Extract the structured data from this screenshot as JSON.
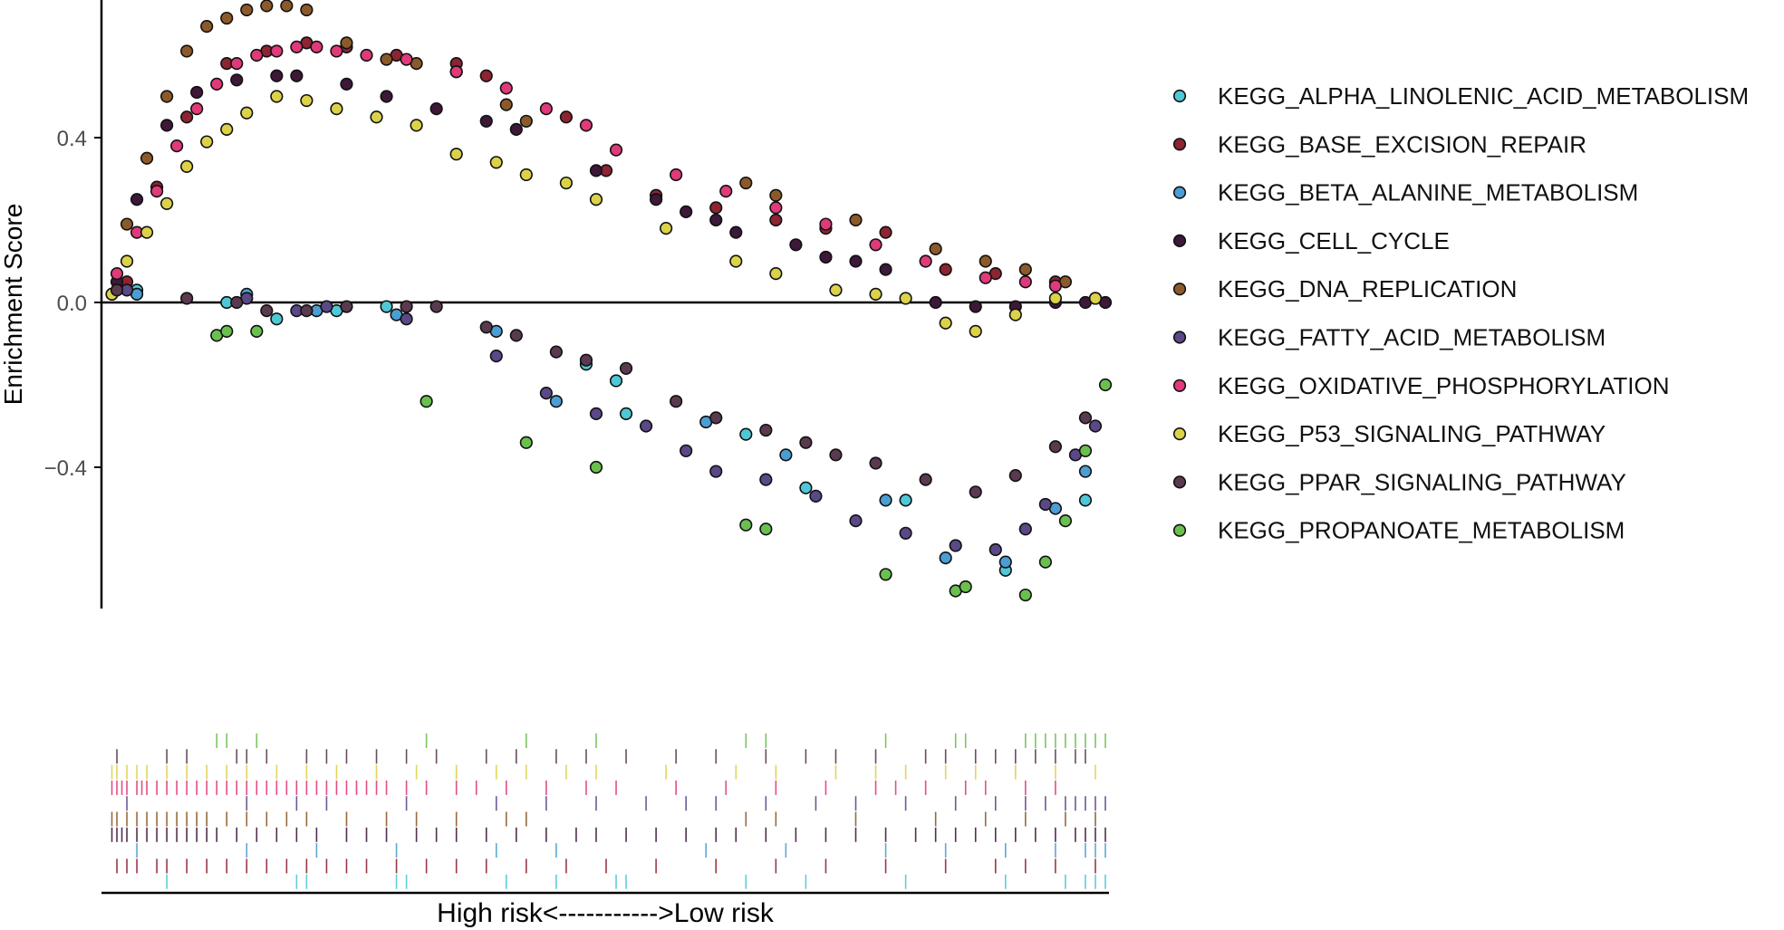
{
  "chart_data": {
    "type": "scatter",
    "ylabel": "Enrichment Score",
    "xlabel": "High risk<----------->Low risk",
    "x_range": [
      0,
      100
    ],
    "ylim": [
      -0.74,
      0.73
    ],
    "yticks": [
      0.4,
      0.0,
      -0.4
    ],
    "ytick_labels": [
      "0.4",
      "0.0",
      "−0.4"
    ],
    "grid": false,
    "legend_position": "right",
    "series": [
      {
        "name": "KEGG_ALPHA_LINOLENIC_ACID_METABOLISM",
        "color": "#4ec8d6",
        "x": [
          3,
          12,
          17,
          23,
          28,
          48,
          51,
          52,
          64,
          70,
          80,
          90,
          98
        ],
        "y": [
          0.03,
          0.0,
          -0.04,
          -0.02,
          -0.01,
          -0.15,
          -0.19,
          -0.27,
          -0.32,
          -0.45,
          -0.48,
          -0.65,
          -0.48
        ]
      },
      {
        "name": "KEGG_BASE_EXCISION_REPAIR",
        "color": "#8c2432",
        "x": [
          2,
          5,
          8,
          12,
          16,
          20,
          24,
          29,
          35,
          38,
          46,
          50,
          55,
          61,
          67,
          72,
          78,
          84,
          89,
          95,
          99
        ],
        "y": [
          0.05,
          0.28,
          0.45,
          0.58,
          0.61,
          0.63,
          0.62,
          0.6,
          0.58,
          0.55,
          0.45,
          0.32,
          0.26,
          0.23,
          0.2,
          0.18,
          0.17,
          0.08,
          0.07,
          0.05,
          0.01
        ]
      },
      {
        "name": "KEGG_BETA_ALANINE_METABOLISM",
        "color": "#4a9ed4",
        "x": [
          3,
          14,
          21,
          29,
          39,
          45,
          60,
          68,
          78,
          84,
          90,
          95,
          98
        ],
        "y": [
          0.02,
          0.02,
          -0.02,
          -0.03,
          -0.07,
          -0.24,
          -0.29,
          -0.37,
          -0.48,
          -0.62,
          -0.63,
          -0.5,
          -0.41
        ]
      },
      {
        "name": "KEGG_CELL_CYCLE",
        "color": "#3d1838",
        "x": [
          1,
          3,
          6,
          9,
          13,
          17,
          19,
          24,
          28,
          33,
          38,
          41,
          49,
          55,
          58,
          61,
          63,
          69,
          72,
          75,
          78,
          83,
          87,
          91,
          95,
          98,
          100
        ],
        "y": [
          0.05,
          0.25,
          0.43,
          0.51,
          0.54,
          0.55,
          0.55,
          0.53,
          0.5,
          0.47,
          0.44,
          0.42,
          0.32,
          0.25,
          0.22,
          0.2,
          0.17,
          0.14,
          0.11,
          0.1,
          0.08,
          0.0,
          -0.01,
          -0.01,
          0.0,
          0.0,
          0.0
        ]
      },
      {
        "name": "KEGG_DNA_REPLICATION",
        "color": "#8c5a2a",
        "x": [
          0.5,
          2,
          4,
          6,
          8,
          10,
          12,
          14,
          16,
          18,
          20,
          24,
          28,
          31,
          35,
          40,
          42,
          64,
          67,
          75,
          83,
          88,
          92,
          96,
          99
        ],
        "y": [
          0.02,
          0.19,
          0.35,
          0.5,
          0.61,
          0.67,
          0.69,
          0.71,
          0.72,
          0.72,
          0.71,
          0.63,
          0.59,
          0.58,
          0.56,
          0.48,
          0.44,
          0.29,
          0.26,
          0.2,
          0.13,
          0.1,
          0.08,
          0.05,
          0.01
        ]
      },
      {
        "name": "KEGG_FATTY_ACID_METABOLISM",
        "color": "#5a4888",
        "x": [
          2,
          14,
          19,
          22,
          30,
          39,
          44,
          49,
          54,
          58,
          61,
          66,
          71,
          75,
          80,
          85,
          89,
          92,
          94,
          97,
          99
        ],
        "y": [
          0.03,
          0.01,
          -0.02,
          -0.01,
          -0.04,
          -0.13,
          -0.22,
          -0.27,
          -0.3,
          -0.36,
          -0.41,
          -0.43,
          -0.47,
          -0.53,
          -0.56,
          -0.59,
          -0.6,
          -0.55,
          -0.49,
          -0.37,
          -0.3
        ]
      },
      {
        "name": "KEGG_OXIDATIVE_PHOSPHORYLATION",
        "color": "#e03a7a",
        "x": [
          1,
          3,
          5,
          7,
          9,
          11,
          13,
          15,
          17,
          19,
          21,
          23,
          26,
          30,
          35,
          40,
          44,
          48,
          51,
          57,
          62,
          67,
          72,
          77,
          82,
          88,
          92,
          95
        ],
        "y": [
          0.07,
          0.17,
          0.27,
          0.38,
          0.47,
          0.53,
          0.58,
          0.6,
          0.61,
          0.62,
          0.62,
          0.61,
          0.6,
          0.59,
          0.56,
          0.52,
          0.47,
          0.43,
          0.37,
          0.31,
          0.27,
          0.23,
          0.19,
          0.14,
          0.1,
          0.06,
          0.05,
          0.04
        ]
      },
      {
        "name": "KEGG_P53_SIGNALING_PATHWAY",
        "color": "#dcd24a",
        "x": [
          0.5,
          2,
          4,
          6,
          8,
          10,
          12,
          14,
          17,
          20,
          23,
          27,
          31,
          35,
          39,
          42,
          46,
          49,
          56,
          63,
          67,
          73,
          77,
          80,
          84,
          87,
          91,
          95,
          99
        ],
        "y": [
          0.02,
          0.1,
          0.17,
          0.24,
          0.33,
          0.39,
          0.42,
          0.46,
          0.5,
          0.49,
          0.47,
          0.45,
          0.43,
          0.36,
          0.34,
          0.31,
          0.29,
          0.25,
          0.18,
          0.1,
          0.07,
          0.03,
          0.02,
          0.01,
          -0.05,
          -0.07,
          -0.03,
          0.01,
          0.01
        ]
      },
      {
        "name": "KEGG_PPAR_SIGNALING_PATHWAY",
        "color": "#5a3a4e",
        "x": [
          1,
          8,
          13,
          16,
          20,
          24,
          30,
          33,
          38,
          41,
          45,
          48,
          52,
          57,
          61,
          66,
          70,
          73,
          77,
          82,
          87,
          91,
          95,
          98
        ],
        "y": [
          0.03,
          0.01,
          0.0,
          -0.02,
          -0.02,
          -0.01,
          -0.01,
          -0.01,
          -0.06,
          -0.08,
          -0.12,
          -0.14,
          -0.16,
          -0.24,
          -0.28,
          -0.31,
          -0.34,
          -0.37,
          -0.39,
          -0.43,
          -0.46,
          -0.42,
          -0.35,
          -0.28
        ]
      },
      {
        "name": "KEGG_PROPANOATE_METABOLISM",
        "color": "#6ac04e",
        "x": [
          11,
          12,
          15,
          32,
          42,
          49,
          64,
          66,
          78,
          85,
          86,
          92,
          94,
          96,
          98,
          100
        ],
        "y": [
          -0.08,
          -0.07,
          -0.07,
          -0.24,
          -0.34,
          -0.4,
          -0.54,
          -0.55,
          -0.66,
          -0.7,
          -0.69,
          -0.71,
          -0.63,
          -0.53,
          -0.36,
          -0.2
        ]
      }
    ],
    "rug_tracks": [
      {
        "series": "KEGG_PROPANOATE_METABOLISM",
        "x": [
          11,
          12,
          15,
          32,
          42,
          49,
          64,
          66,
          78,
          85,
          86,
          92,
          93,
          94,
          95,
          96,
          97,
          98,
          99,
          100
        ]
      },
      {
        "series": "KEGG_PPAR_SIGNALING_PATHWAY",
        "x": [
          1,
          6,
          8,
          13,
          14,
          16,
          20,
          22,
          24,
          27,
          30,
          33,
          38,
          41,
          45,
          48,
          52,
          57,
          61,
          66,
          70,
          73,
          77,
          82,
          84,
          87,
          89,
          91,
          93,
          95,
          97,
          98
        ]
      },
      {
        "series": "KEGG_P53_SIGNALING_PATHWAY",
        "x": [
          0.5,
          1,
          2,
          3,
          4,
          6,
          8,
          10,
          12,
          14,
          17,
          20,
          23,
          27,
          31,
          35,
          39,
          42,
          46,
          49,
          56,
          63,
          67,
          73,
          77,
          80,
          84,
          87,
          91,
          95,
          99
        ]
      },
      {
        "series": "KEGG_OXIDATIVE_PHOSPHORYLATION",
        "x": [
          0.5,
          1,
          1.5,
          2,
          3,
          3.5,
          4,
          5,
          6,
          7,
          8,
          9,
          10,
          11,
          12,
          13,
          14,
          15,
          16,
          17,
          18,
          19,
          20,
          21,
          22,
          23,
          24,
          25,
          26,
          27,
          28,
          30,
          32,
          35,
          37,
          40,
          44,
          48,
          51,
          57,
          62,
          67,
          72,
          77,
          79,
          82,
          86,
          88,
          92,
          95
        ]
      },
      {
        "series": "KEGG_FATTY_ACID_METABOLISM",
        "x": [
          2,
          14,
          19,
          22,
          30,
          39,
          44,
          49,
          54,
          58,
          61,
          66,
          71,
          75,
          80,
          85,
          89,
          92,
          94,
          96,
          97,
          98,
          99,
          100
        ]
      },
      {
        "series": "KEGG_DNA_REPLICATION",
        "x": [
          0.5,
          1,
          2,
          3,
          4,
          5,
          6,
          7,
          8,
          9,
          10,
          12,
          14,
          16,
          18,
          20,
          24,
          28,
          31,
          35,
          40,
          42,
          64,
          67,
          75,
          83,
          88,
          92,
          96,
          99
        ]
      },
      {
        "series": "KEGG_CELL_CYCLE",
        "x": [
          0.5,
          1,
          1.5,
          2,
          3,
          4,
          5,
          6,
          7,
          8,
          9,
          10,
          11,
          13,
          15,
          17,
          19,
          21,
          24,
          26,
          28,
          31,
          33,
          35,
          38,
          41,
          44,
          47,
          49,
          52,
          55,
          58,
          61,
          63,
          66,
          69,
          72,
          75,
          78,
          81,
          83,
          85,
          87,
          89,
          91,
          93,
          95,
          97,
          98,
          99,
          100
        ]
      },
      {
        "series": "KEGG_BETA_ALANINE_METABOLISM",
        "x": [
          3,
          14,
          21,
          29,
          39,
          45,
          60,
          68,
          78,
          84,
          90,
          95,
          98,
          99,
          100
        ]
      },
      {
        "series": "KEGG_BASE_EXCISION_REPAIR",
        "x": [
          1,
          2,
          3,
          5,
          6,
          8,
          10,
          12,
          14,
          16,
          18,
          20,
          22,
          24,
          26,
          29,
          32,
          35,
          38,
          42,
          46,
          50,
          55,
          61,
          67,
          72,
          78,
          84,
          89,
          92,
          95,
          99
        ]
      },
      {
        "series": "KEGG_ALPHA_LINOLENIC_ACID_METABOLISM",
        "x": [
          6,
          19,
          20,
          29,
          30,
          40,
          45,
          51,
          52,
          64,
          70,
          80,
          90,
          96,
          98,
          99,
          100
        ]
      }
    ]
  }
}
